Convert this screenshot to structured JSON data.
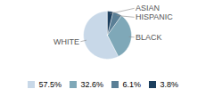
{
  "chart_data": {
    "type": "pie",
    "categories": [
      "WHITE",
      "BLACK",
      "HISPANIC",
      "ASIAN"
    ],
    "values": [
      57.5,
      32.6,
      6.1,
      3.8
    ],
    "value_labels": [
      "57.5%",
      "32.6%",
      "6.1%",
      "3.8%"
    ],
    "colors": [
      "#c8d8e8",
      "#7fa8b8",
      "#5a7f96",
      "#1c3f5e"
    ],
    "legend": "bottom"
  }
}
